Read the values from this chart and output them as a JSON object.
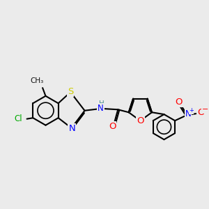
{
  "bg_color": "#ebebeb",
  "bond_color": "#000000",
  "bond_width": 1.5,
  "atom_colors": {
    "S": "#cccc00",
    "N": "#0000ff",
    "O": "#ff0000",
    "Cl": "#00aa00",
    "C": "#000000",
    "H": "#4a9090"
  },
  "font_size": 8.5,
  "fig_width": 3.0,
  "fig_height": 3.0,
  "xlim": [
    0.0,
    10.0
  ],
  "ylim": [
    1.5,
    7.5
  ]
}
